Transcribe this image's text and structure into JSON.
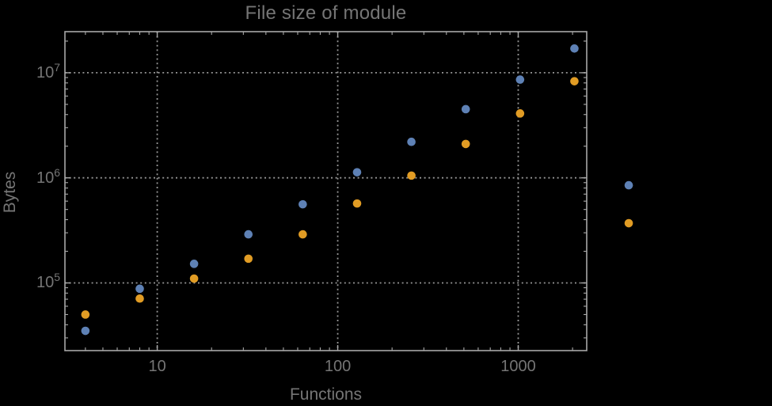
{
  "colors": {
    "background": "#000000",
    "frame": "#a8a8a8",
    "grid": "#959595",
    "text": "#757575",
    "series1": "#5E81B5",
    "series2": "#E19C24"
  },
  "chart_data": {
    "type": "scatter",
    "title": "File size of module",
    "xlabel": "Functions",
    "ylabel": "Bytes",
    "x_scale": "log",
    "y_scale": "log",
    "xlim": [
      3.08,
      2396
    ],
    "ylim": [
      22700,
      24600000
    ],
    "grid": "dotted lines at decade powers, both axes",
    "legend": "none",
    "x": [
      4,
      8,
      16,
      32,
      64,
      128,
      256,
      512,
      1024,
      2048,
      4096
    ],
    "series": [
      {
        "name": "series-1-blue",
        "color": "#5E81B5",
        "values": [
          35000,
          88000,
          152000,
          290000,
          560000,
          1130000,
          2200000,
          4500000,
          8600000,
          17000000,
          850000
        ]
      },
      {
        "name": "series-2-orange",
        "color": "#E19C24",
        "values": [
          50000,
          71000,
          110000,
          170000,
          290000,
          570000,
          1050000,
          2100000,
          4100000,
          8300000,
          370000
        ]
      }
    ],
    "x_ticks": [
      {
        "value": 10,
        "label": "10"
      },
      {
        "value": 100,
        "label": "100"
      },
      {
        "value": 1000,
        "label": "1000"
      }
    ],
    "y_ticks": [
      {
        "value": 100000,
        "base": "10",
        "exp": "5"
      },
      {
        "value": 1000000,
        "base": "10",
        "exp": "6"
      },
      {
        "value": 10000000,
        "base": "10",
        "exp": "7"
      }
    ],
    "x_minor_ticks": [
      4,
      5,
      6,
      7,
      8,
      9,
      20,
      30,
      40,
      50,
      60,
      70,
      80,
      90,
      200,
      300,
      400,
      500,
      600,
      700,
      800,
      900,
      2000
    ],
    "y_minor_ticks": [
      30000,
      40000,
      50000,
      60000,
      70000,
      80000,
      90000,
      200000,
      300000,
      400000,
      500000,
      600000,
      700000,
      800000,
      900000,
      2000000,
      3000000,
      4000000,
      5000000,
      6000000,
      7000000,
      8000000,
      9000000,
      20000000
    ]
  }
}
